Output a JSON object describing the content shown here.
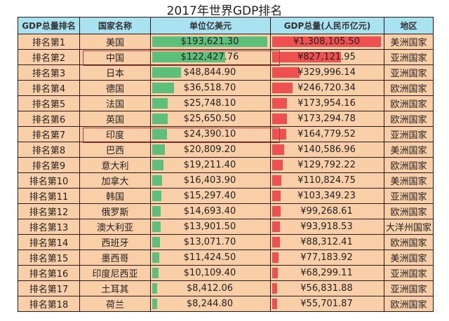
{
  "title": "2017年世界GDP排名",
  "headers": [
    "GDP总量排名",
    "国家名称",
    "单位亿美元",
    "GDP总量(人民币亿元)",
    "地区"
  ],
  "colors": {
    "header_bg": "#a9e3f1",
    "cell_bg": "#f9cfa8",
    "usd_bar": "#5cbf7a",
    "cny_bar": "#ef5050",
    "highlight_box": "#c0392b"
  },
  "highlighted_countries": [
    "中国",
    "印度"
  ],
  "rows": [
    {
      "rank": "排名第1",
      "country": "美国",
      "usd": "$193,621.30",
      "usd_value": 193621.3,
      "cny": "¥1,308,105.50",
      "cny_value": 1308105.5,
      "region": "美洲国家"
    },
    {
      "rank": "排名第2",
      "country": "中国",
      "usd": "$122,427.76",
      "usd_value": 122427.76,
      "cny": "¥827,121.95",
      "cny_value": 827121.95,
      "region": "亚洲国家"
    },
    {
      "rank": "排名第3",
      "country": "日本",
      "usd": "$48,844.90",
      "usd_value": 48844.9,
      "cny": "¥329,996.14",
      "cny_value": 329996.14,
      "region": "亚洲国家"
    },
    {
      "rank": "排名第4",
      "country": "德国",
      "usd": "$36,518.70",
      "usd_value": 36518.7,
      "cny": "¥246,720.34",
      "cny_value": 246720.34,
      "region": "欧洲国家"
    },
    {
      "rank": "排名第5",
      "country": "法国",
      "usd": "$25,748.10",
      "usd_value": 25748.1,
      "cny": "¥173,954.16",
      "cny_value": 173954.16,
      "region": "欧洲国家"
    },
    {
      "rank": "排名第6",
      "country": "英国",
      "usd": "$25,650.50",
      "usd_value": 25650.5,
      "cny": "¥173,294.78",
      "cny_value": 173294.78,
      "region": "欧洲国家"
    },
    {
      "rank": "排名第7",
      "country": "印度",
      "usd": "$24,390.10",
      "usd_value": 24390.1,
      "cny": "¥164,779.52",
      "cny_value": 164779.52,
      "region": "亚洲国家"
    },
    {
      "rank": "排名第8",
      "country": "巴西",
      "usd": "$20,809.20",
      "usd_value": 20809.2,
      "cny": "¥140,586.96",
      "cny_value": 140586.96,
      "region": "美洲国家"
    },
    {
      "rank": "排名第9",
      "country": "意大利",
      "usd": "$19,211.40",
      "usd_value": 19211.4,
      "cny": "¥129,792.22",
      "cny_value": 129792.22,
      "region": "欧洲国家"
    },
    {
      "rank": "排名第10",
      "country": "加拿大",
      "usd": "$16,403.90",
      "usd_value": 16403.9,
      "cny": "¥110,824.75",
      "cny_value": 110824.75,
      "region": "美洲国家"
    },
    {
      "rank": "排名第11",
      "country": "韩国",
      "usd": "$15,297.40",
      "usd_value": 15297.4,
      "cny": "¥103,349.23",
      "cny_value": 103349.23,
      "region": "亚洲国家"
    },
    {
      "rank": "排名第12",
      "country": "俄罗斯",
      "usd": "$14,693.40",
      "usd_value": 14693.4,
      "cny": "¥99,268.61",
      "cny_value": 99268.61,
      "region": "欧洲国家"
    },
    {
      "rank": "排名第13",
      "country": "澳大利亚",
      "usd": "$13,901.50",
      "usd_value": 13901.5,
      "cny": "¥93,918.53",
      "cny_value": 93918.53,
      "region": "大洋州国家"
    },
    {
      "rank": "排名第14",
      "country": "西班牙",
      "usd": "$13,071.70",
      "usd_value": 13071.7,
      "cny": "¥88,312.41",
      "cny_value": 88312.41,
      "region": "欧洲国家"
    },
    {
      "rank": "排名第15",
      "country": "墨西哥",
      "usd": "$11,424.50",
      "usd_value": 11424.5,
      "cny": "¥77,183.92",
      "cny_value": 77183.92,
      "region": "美洲国家"
    },
    {
      "rank": "排名第16",
      "country": "印度尼西亚",
      "usd": "$10,109.40",
      "usd_value": 10109.4,
      "cny": "¥68,299.11",
      "cny_value": 68299.11,
      "region": "亚洲国家"
    },
    {
      "rank": "排名第17",
      "country": "土耳其",
      "usd": "$8,412.06",
      "usd_value": 8412.06,
      "cny": "¥56,831.88",
      "cny_value": 56831.88,
      "region": "亚洲国家"
    },
    {
      "rank": "排名第18",
      "country": "荷兰",
      "usd": "$8,244.80",
      "usd_value": 8244.8,
      "cny": "¥55,701.87",
      "cny_value": 55701.87,
      "region": "欧洲国家"
    }
  ]
}
